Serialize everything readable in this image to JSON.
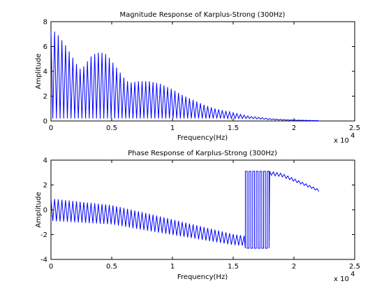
{
  "colors": {
    "series": "#0000ff",
    "axes": "#000000",
    "background": "#ffffff"
  },
  "chart_data": [
    {
      "type": "line",
      "title": "Magnitude Response of Karplus-Strong (300Hz)",
      "xlabel": "Frequency(Hz)",
      "ylabel": "Amplitude",
      "xlim": [
        0,
        25000
      ],
      "ylim": [
        0,
        8
      ],
      "x_ticks": [
        0,
        5000,
        10000,
        15000,
        20000,
        25000
      ],
      "x_tick_labels": [
        "0",
        "0.5",
        "1",
        "1.5",
        "2",
        "2.5"
      ],
      "y_ticks": [
        0,
        2,
        4,
        6,
        8
      ],
      "y_tick_labels": [
        "0",
        "2",
        "4",
        "6",
        "8"
      ],
      "x_exponent_base": "x 10",
      "x_exponent": "4",
      "grid": false,
      "series": [
        {
          "comb": true,
          "fundamental_hz": 300,
          "x_end": 22050,
          "trough": 0.2,
          "peaks": [
            [
              0,
              7.2
            ],
            [
              300,
              7.2
            ],
            [
              600,
              6.9
            ],
            [
              900,
              6.5
            ],
            [
              1200,
              6.1
            ],
            [
              1500,
              5.6
            ],
            [
              1800,
              5.1
            ],
            [
              2100,
              4.6
            ],
            [
              2400,
              4.2
            ],
            [
              2700,
              4.4
            ],
            [
              3000,
              4.8
            ],
            [
              3300,
              5.2
            ],
            [
              3600,
              5.4
            ],
            [
              3900,
              5.5
            ],
            [
              4200,
              5.5
            ],
            [
              4500,
              5.4
            ],
            [
              4800,
              5.1
            ],
            [
              5100,
              4.7
            ],
            [
              5400,
              4.3
            ],
            [
              5700,
              3.9
            ],
            [
              6000,
              3.5
            ],
            [
              6300,
              3.2
            ],
            [
              6600,
              3.1
            ],
            [
              7200,
              3.2
            ],
            [
              8100,
              3.2
            ],
            [
              9000,
              3.0
            ],
            [
              9900,
              2.6
            ],
            [
              10800,
              2.1
            ],
            [
              11700,
              1.7
            ],
            [
              12600,
              1.3
            ],
            [
              13500,
              1.0
            ],
            [
              14400,
              0.8
            ],
            [
              15300,
              0.6
            ],
            [
              16200,
              0.4
            ],
            [
              17100,
              0.3
            ],
            [
              18000,
              0.2
            ],
            [
              19500,
              0.1
            ],
            [
              22050,
              0.03
            ]
          ]
        }
      ]
    },
    {
      "type": "line",
      "title": "Phase Response of Karplus-Strong (300Hz)",
      "xlabel": "Frequency(Hz)",
      "ylabel": "Amplitude",
      "xlim": [
        0,
        25000
      ],
      "ylim": [
        -4,
        4
      ],
      "x_ticks": [
        0,
        5000,
        10000,
        15000,
        20000,
        25000
      ],
      "x_tick_labels": [
        "0",
        "0.5",
        "1",
        "1.5",
        "2",
        "2.5"
      ],
      "y_ticks": [
        -4,
        -2,
        0,
        2,
        4
      ],
      "y_tick_labels": [
        "-4",
        "-2",
        "0",
        "2",
        "4"
      ],
      "x_exponent_base": "x 10",
      "x_exponent": "4",
      "grid": false,
      "series": [
        {
          "oscillating": true,
          "fundamental_hz": 300,
          "segments": [
            {
              "x_start": 0,
              "x_end": 16000,
              "center": [
                [
                  0,
                  0
                ],
                [
                  5000,
                  -0.4
                ],
                [
                  10000,
                  -1.4
                ],
                [
                  15000,
                  -2.4
                ],
                [
                  16000,
                  -2.5
                ]
              ],
              "half_amplitude": [
                [
                  0,
                  0.9
                ],
                [
                  8000,
                  0.7
                ],
                [
                  16000,
                  0.4
                ]
              ]
            },
            {
              "x_start": 16000,
              "x_end": 18000,
              "wrap_low": -3.1,
              "wrap_high": 3.1
            },
            {
              "x_start": 18000,
              "x_end": 22050,
              "center": [
                [
                  18000,
                  2.95
                ],
                [
                  19000,
                  2.8
                ],
                [
                  20000,
                  2.4
                ],
                [
                  21000,
                  2.0
                ],
                [
                  22050,
                  1.55
                ]
              ],
              "half_amplitude": [
                [
                  18000,
                  0.15
                ],
                [
                  22050,
                  0.08
                ]
              ]
            }
          ]
        }
      ]
    }
  ]
}
